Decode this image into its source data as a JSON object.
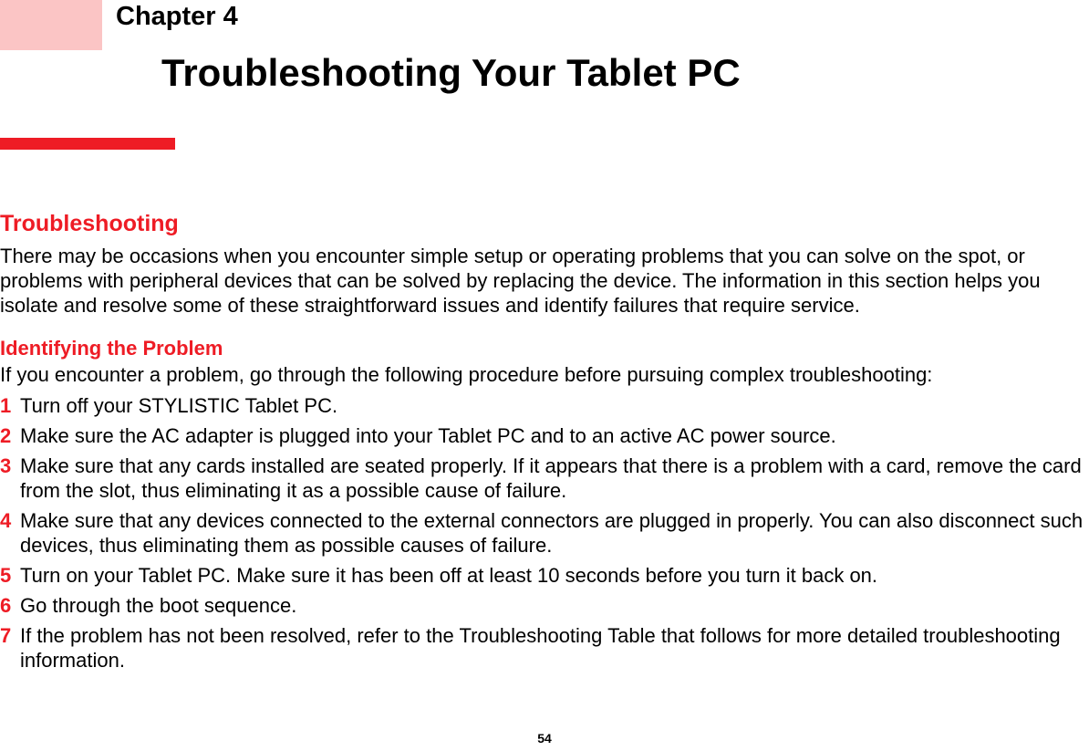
{
  "chapter_label": "Chapter 4",
  "main_title": "Troubleshooting Your Tablet PC",
  "section_heading": "Troubleshooting",
  "intro_paragraph": "There may be occasions when you encounter simple setup or operating problems that you can solve on the spot, or problems with peripheral devices that can be solved by replacing the device. The information in this section helps you isolate and resolve some of these straightforward issues and identify failures that require service.",
  "subheading": "Identifying the Problem",
  "sub_intro": "If you encounter a problem, go through the following procedure before pursuing complex troubleshooting:",
  "steps": [
    {
      "n": "1",
      "text": "Turn off your STYLISTIC Tablet PC."
    },
    {
      "n": "2",
      "text": "Make sure the AC adapter is plugged into your Tablet PC and to an active AC power source."
    },
    {
      "n": "3",
      "text": "Make sure that any cards installed are seated properly. If it appears that there is a problem with a card, remove the card from the slot, thus eliminating it as a possible cause of failure."
    },
    {
      "n": "4",
      "text": "Make sure that any devices connected to the external connectors are plugged in properly. You can also disconnect such devices, thus eliminating them as possible causes of failure."
    },
    {
      "n": "5",
      "text": "Turn on your Tablet PC. Make sure it has been off at least 10 seconds before you turn it back on."
    },
    {
      "n": "6",
      "text": "Go through the boot sequence."
    },
    {
      "n": "7",
      "text": "If the problem has not been resolved, refer to the Troubleshooting Table that follows for more detailed troubleshooting information."
    }
  ],
  "page_number": "54",
  "colors": {
    "accent_red": "#ee1c25",
    "pink_block": "#fbc5c5",
    "text": "#000000",
    "background": "#ffffff"
  }
}
